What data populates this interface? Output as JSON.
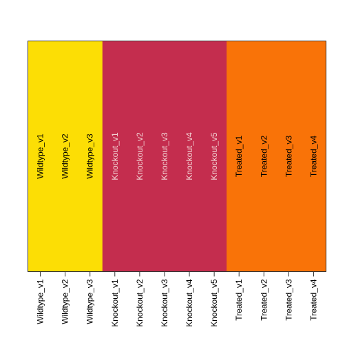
{
  "chart_data": {
    "type": "heatmap",
    "title": "",
    "xlabel": "",
    "ylabel": "",
    "columns": [
      "Wildtype_v1",
      "Wildtype_v2",
      "Wildtype_v3",
      "Knockout_v1",
      "Knockout_v2",
      "Knockout_v3",
      "Knockout_v4",
      "Knockout_v5",
      "Treated_v1",
      "Treated_v2",
      "Treated_v3",
      "Treated_v4"
    ],
    "groups": [
      {
        "label": "Wildtype",
        "color": "#FCDE05",
        "text_color": "#000000",
        "count": 3
      },
      {
        "label": "Knockout",
        "color": "#C42D4E",
        "text_color": "#F2D6D6",
        "count": 5
      },
      {
        "label": "Treated",
        "color": "#F97308",
        "text_color": "#000000",
        "count": 4
      }
    ],
    "cell_labels": true,
    "axis_tick_labels": "bottom",
    "grid": false,
    "legend": "none"
  }
}
